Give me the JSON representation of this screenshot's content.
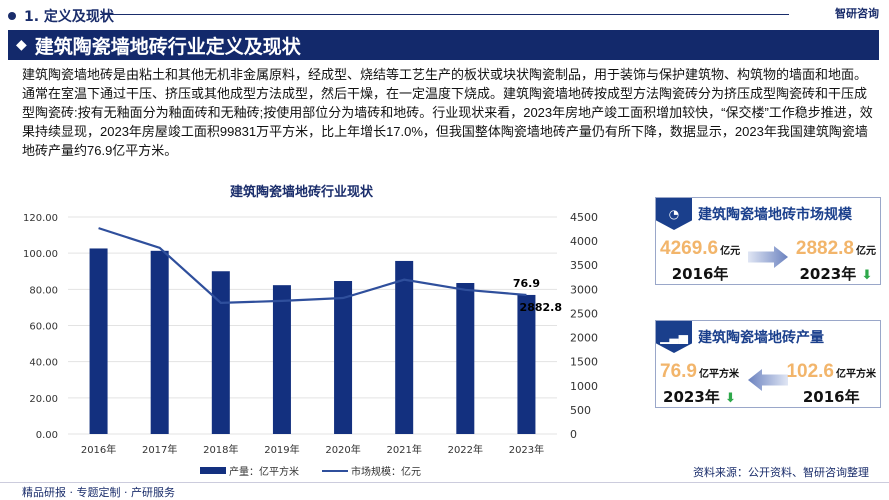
{
  "section": {
    "title": "1. 定义及现状",
    "brand": "智研咨询"
  },
  "banner": {
    "title": "建筑陶瓷墙地砖行业定义及现状"
  },
  "paragraph": "建筑陶瓷墙地砖是由粘土和其他无机非金属原料，经成型、烧结等工艺生产的板状或块状陶瓷制品，用于装饰与保护建筑物、构筑物的墙面和地面。通常在室温下通过干压、挤压或其他成型方法成型，然后干燥，在一定温度下烧成。建筑陶瓷墙地砖按成型方法陶瓷砖分为挤压成型陶瓷砖和干压成型陶瓷砖:按有无釉面分为釉面砖和无釉砖;按使用部位分为墙砖和地砖。行业现状来看，2023年房地产竣工面积增加较快，“保交楼”工作稳步推进，效果持续显现，2023年房屋竣工面积99831万平方米，比上年增长17.0%，但我国整体陶瓷墙地砖产量仍有所下降，数据显示，2023年我国建筑陶瓷墙地砖产量约76.9亿平方米。",
  "chart_data": {
    "type": "bar+line",
    "title": "建筑陶瓷墙地砖行业现状",
    "categories": [
      "2016年",
      "2017年",
      "2018年",
      "2019年",
      "2020年",
      "2021年",
      "2022年",
      "2023年"
    ],
    "series": [
      {
        "name": "产量：亿平方米",
        "type": "bar",
        "axis": "left",
        "values": [
          102.6,
          101.3,
          90.0,
          82.3,
          84.6,
          95.7,
          83.5,
          76.9
        ],
        "color": "#13307f"
      },
      {
        "name": "市场规模：亿元",
        "type": "line",
        "axis": "right",
        "values": [
          4269.6,
          3860,
          2720,
          2760,
          2820,
          3200,
          2990,
          2882.8
        ],
        "color": "#2f4f9c"
      }
    ],
    "left_ylim": [
      0,
      120
    ],
    "left_ticks": [
      "0.00",
      "20.00",
      "40.00",
      "60.00",
      "80.00",
      "100.00",
      "120.00"
    ],
    "right_ylim": [
      0,
      4500
    ],
    "right_ticks": [
      "0",
      "500",
      "1000",
      "1500",
      "2000",
      "2500",
      "3000",
      "3500",
      "4000",
      "4500"
    ],
    "data_labels": [
      "76.9",
      "2882.8"
    ],
    "grid": true,
    "legend": "bottom"
  },
  "cards": [
    {
      "title": "建筑陶瓷墙地砖市场规模",
      "icon": "pie-chart-icon",
      "left_value": "4269.6",
      "left_unit": "亿元",
      "left_year": "2016年",
      "right_value": "2882.8",
      "right_unit": "亿元",
      "right_year": "2023年"
    },
    {
      "title": "建筑陶瓷墙地砖产量",
      "icon": "bar-chart-icon",
      "left_value": "76.9",
      "left_unit": "亿平方米",
      "left_year": "2023年",
      "right_value": "102.6",
      "right_unit": "亿平方米",
      "right_year": "2016年"
    }
  ],
  "source": "资料来源：公开资料、智研咨询整理",
  "footer": "精品研报 · 专题定制 · 产研服务"
}
